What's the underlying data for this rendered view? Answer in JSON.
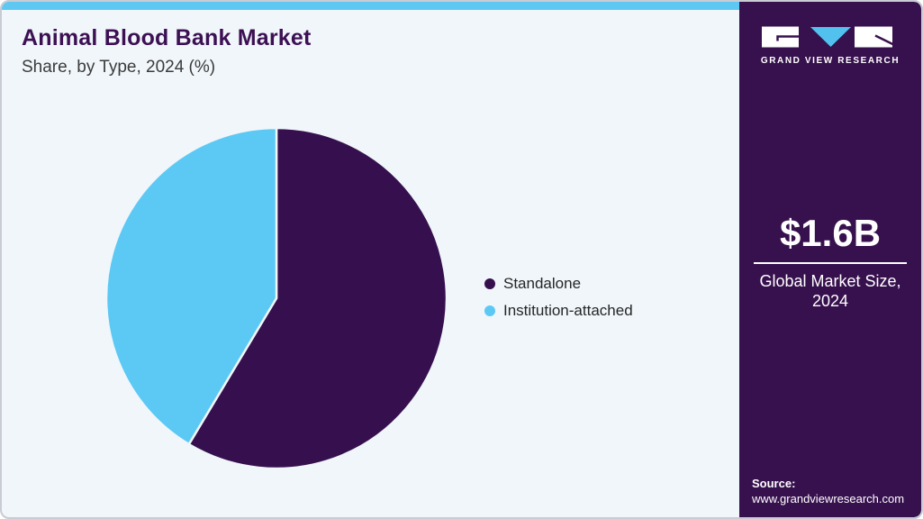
{
  "header": {
    "title": "Animal Blood Bank Market",
    "subtitle": "Share, by Type, 2024 (%)"
  },
  "chart_data": {
    "type": "pie",
    "title": "Animal Blood Bank Market Share, by Type, 2024 (%)",
    "categories": [
      "Standalone",
      "Institution-attached"
    ],
    "values": [
      58.6,
      41.4
    ],
    "unit": "percent",
    "colors": [
      "#36104e",
      "#5cc9f5"
    ],
    "start_angle_deg": 0,
    "direction": "clockwise",
    "legend_position": "right-middle",
    "data_labels": false
  },
  "sidebar": {
    "brand": "GRAND VIEW RESEARCH",
    "stat_value": "$1.6B",
    "stat_label_line1": "Global Market Size,",
    "stat_label_line2": "2024",
    "source_label": "Source:",
    "source_url": "www.grandviewresearch.com"
  },
  "colors": {
    "accent_blue": "#5fc8f2",
    "brand_purple": "#37114e",
    "pie_dark": "#36104e",
    "pie_blue": "#5cc9f5",
    "card_background": "#f0f6fa",
    "title_purple": "#3d1054"
  }
}
